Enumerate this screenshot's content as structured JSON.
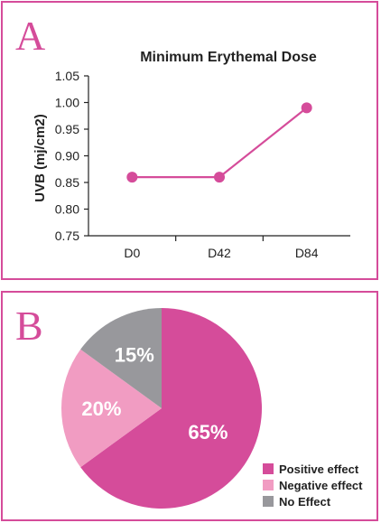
{
  "panels": {
    "a_label": "A",
    "b_label": "B"
  },
  "chart_data": [
    {
      "type": "line",
      "title": "Minimum Erythemal Dose",
      "xlabel": "",
      "ylabel": "UVB (mj/cm2)",
      "categories": [
        "D0",
        "D42",
        "D84"
      ],
      "values": [
        0.86,
        0.86,
        0.99
      ],
      "ylim": [
        0.75,
        1.05
      ],
      "yticks": [
        "0.75",
        "0.80",
        "0.85",
        "0.90",
        "0.95",
        "1.00",
        "1.05"
      ],
      "color": "#d54c9a",
      "grid": false
    },
    {
      "type": "pie",
      "slices": [
        {
          "label": "Positive effect",
          "value": 65,
          "display": "65%",
          "color": "#d54c9a"
        },
        {
          "label": "Negative effect",
          "value": 20,
          "display": "20%",
          "color": "#f19cc2"
        },
        {
          "label": "No Effect",
          "value": 15,
          "display": "15%",
          "color": "#98989c"
        }
      ],
      "legend": "bottom-right"
    }
  ]
}
